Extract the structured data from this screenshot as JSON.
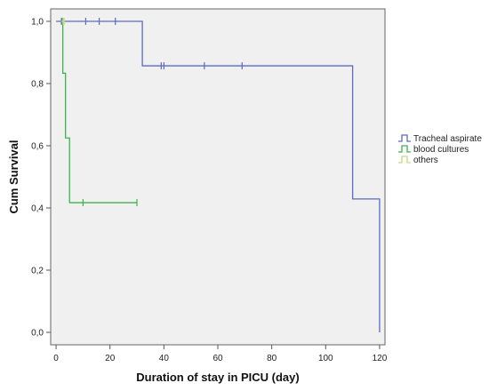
{
  "chart_data": {
    "type": "line",
    "subtype": "kaplan-meier-survival",
    "title": "",
    "xlabel": "Duration of stay in PICU (day)",
    "ylabel": "Cum Survival",
    "xlim": [
      -2,
      122
    ],
    "ylim": [
      -0.04,
      1.04
    ],
    "x_ticks": [
      0,
      20,
      40,
      60,
      80,
      100,
      120
    ],
    "y_ticks": [
      0.0,
      0.2,
      0.4,
      0.6,
      0.8,
      1.0
    ],
    "y_tick_labels": [
      "0,0",
      "0,2",
      "0,4",
      "0,6",
      "0,8",
      "1,0"
    ],
    "grid": false,
    "plot_background": "#f0f0f0",
    "legend_position": "right",
    "series": [
      {
        "name": "Tracheal aspirate",
        "color": "#5b6bc0",
        "steps": [
          [
            0,
            1.0
          ],
          [
            32,
            0.857
          ],
          [
            110,
            0.429
          ],
          [
            120,
            0.0
          ]
        ],
        "end_x": 120,
        "censored": [
          [
            2,
            1.0
          ],
          [
            11,
            1.0
          ],
          [
            16,
            1.0
          ],
          [
            22,
            1.0
          ],
          [
            39,
            0.857
          ],
          [
            40,
            0.857
          ],
          [
            55,
            0.857
          ],
          [
            69,
            0.857
          ]
        ]
      },
      {
        "name": "blood cultures",
        "color": "#3cb44b",
        "steps": [
          [
            2,
            1.0
          ],
          [
            2.5,
            0.833
          ],
          [
            3.5,
            0.625
          ],
          [
            5,
            0.417
          ]
        ],
        "end_x": 30,
        "censored": [
          [
            2.3,
            1.0
          ],
          [
            10,
            0.417
          ],
          [
            30,
            0.417
          ]
        ]
      },
      {
        "name": "others",
        "color": "#c8d78c",
        "steps": [
          [
            2,
            1.0
          ]
        ],
        "end_x": 3,
        "censored": [
          [
            2.6,
            1.0
          ],
          [
            3,
            1.0
          ]
        ]
      }
    ]
  }
}
